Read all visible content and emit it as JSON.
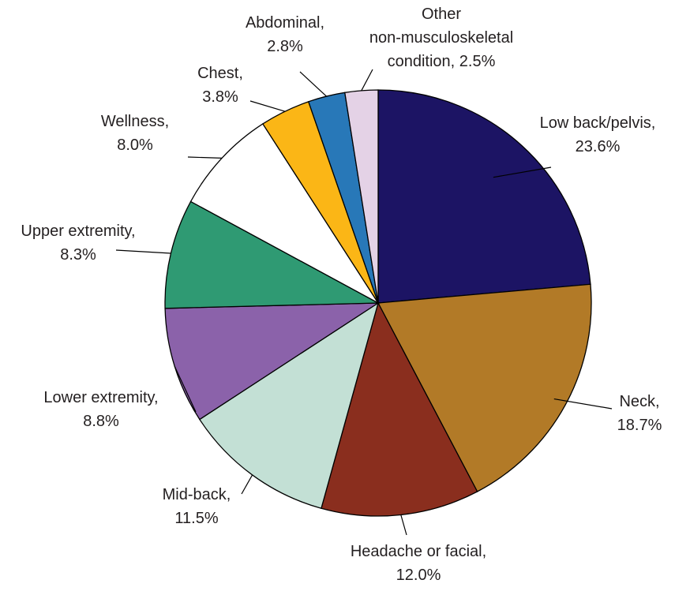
{
  "chart_data": {
    "type": "pie",
    "start_angle_deg": 0,
    "direction": "clockwise",
    "slices": [
      {
        "lines": [
          "Low back/pelvis,",
          "23.6%"
        ],
        "name": "Low back/pelvis",
        "value": 23.6,
        "color": "#1c1464"
      },
      {
        "lines": [
          "Neck,",
          "18.7%"
        ],
        "name": "Neck",
        "value": 18.7,
        "color": "#b27a27"
      },
      {
        "lines": [
          "Headache or facial,",
          "12.0%"
        ],
        "name": "Headache or facial",
        "value": 12.0,
        "color": "#8a2e1e"
      },
      {
        "lines": [
          "Mid-back,",
          "11.5%"
        ],
        "name": "Mid-back",
        "value": 11.5,
        "color": "#c3e0d5"
      },
      {
        "lines": [
          "Lower extremity,",
          "8.8%"
        ],
        "name": "Lower extremity",
        "value": 8.8,
        "color": "#8b62aa"
      },
      {
        "lines": [
          "Upper extremity,",
          "8.3%"
        ],
        "name": "Upper extremity",
        "value": 8.3,
        "color": "#2f9a73"
      },
      {
        "lines": [
          "Wellness,",
          "8.0%"
        ],
        "name": "Wellness",
        "value": 8.0,
        "color": "#ffffff"
      },
      {
        "lines": [
          "Chest,",
          "3.8%"
        ],
        "name": "Chest",
        "value": 3.8,
        "color": "#fbb616"
      },
      {
        "lines": [
          "Abdominal,",
          "2.8%"
        ],
        "name": "Abdominal",
        "value": 2.8,
        "color": "#2878b8"
      },
      {
        "lines": [
          "Other",
          "non-musculoskeletal",
          "condition, 2.5%"
        ],
        "name": "Other non-musculoskeletal condition",
        "value": 2.5,
        "color": "#e4d2e6"
      }
    ]
  }
}
